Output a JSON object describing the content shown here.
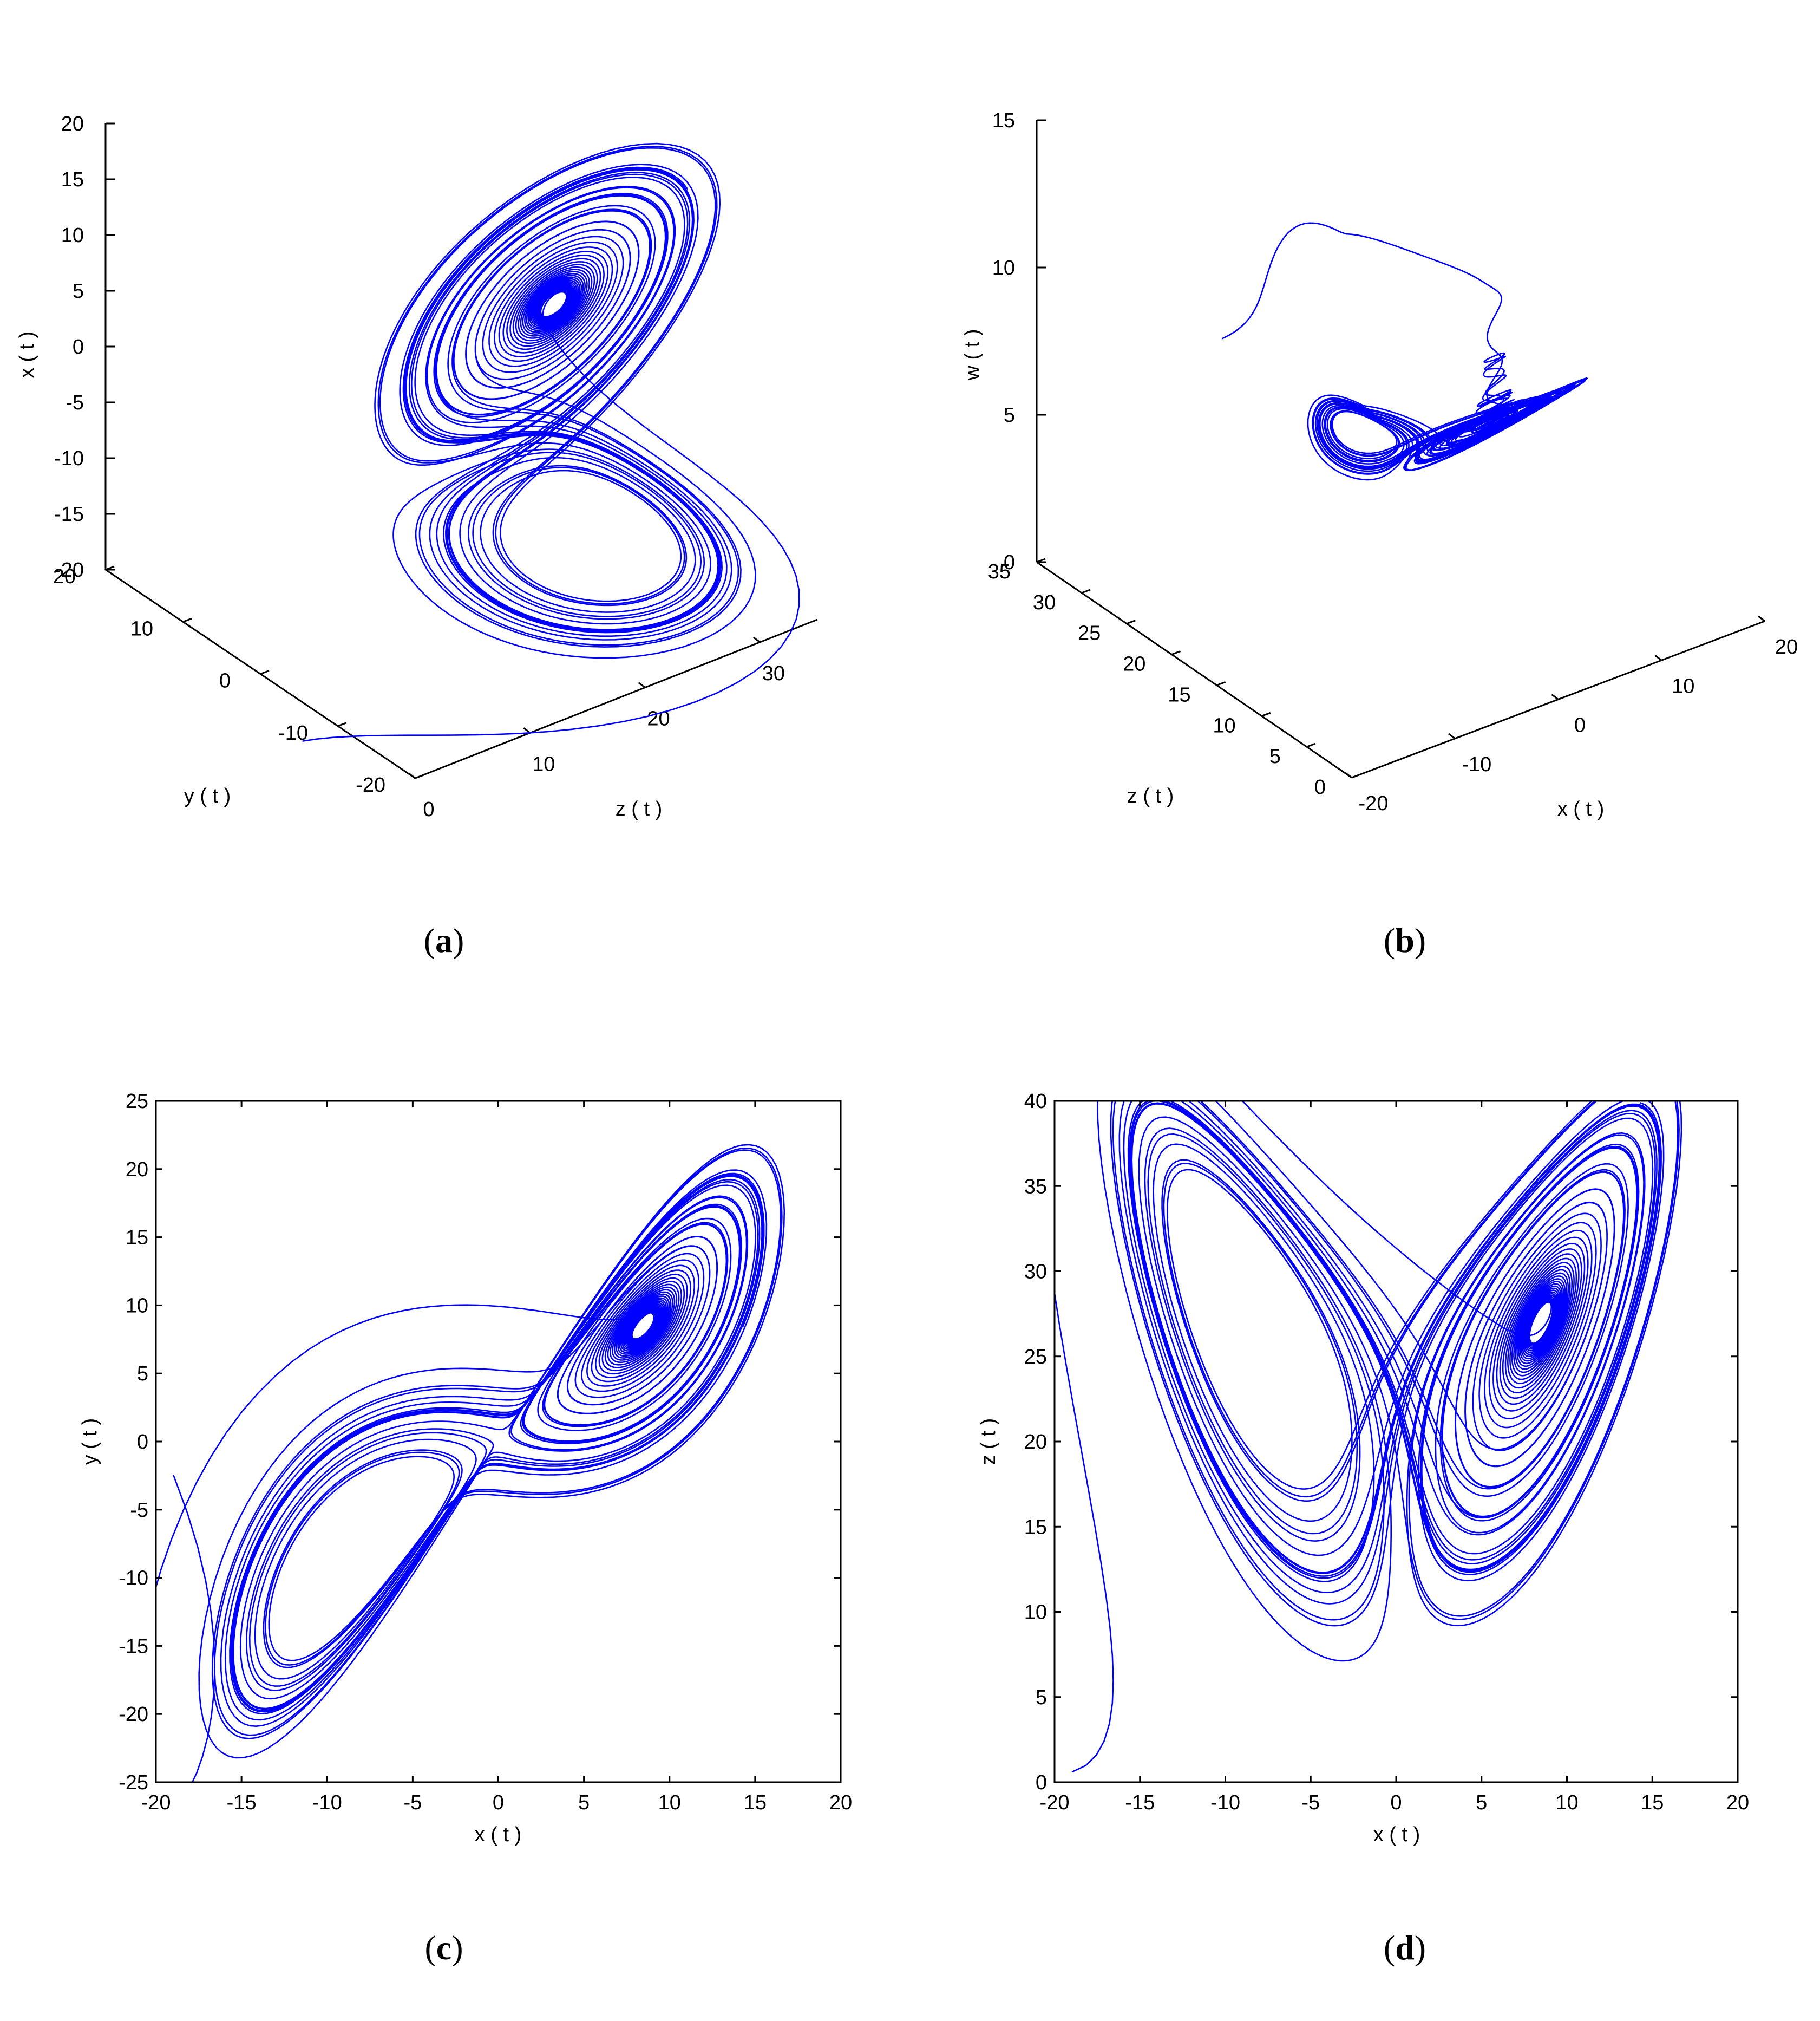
{
  "panels": [
    {
      "id": "a",
      "caption": "a",
      "chart_data": {
        "type": "line",
        "projection": "3d",
        "axes": [
          {
            "label": "x ( t )",
            "ticks": [
              "20",
              "15",
              "10",
              "5",
              "0",
              "-5",
              "-10",
              "-15",
              "-20"
            ],
            "range": [
              -20,
              20
            ]
          },
          {
            "label": "y ( t )",
            "ticks": [
              "20",
              "10",
              "0",
              "-10",
              "-20"
            ],
            "range": [
              -20,
              20
            ]
          },
          {
            "label": "z ( t )",
            "ticks": [
              "0",
              "10",
              "20",
              "30"
            ],
            "range": [
              0,
              35
            ]
          }
        ],
        "series_color": "#0000ff"
      }
    },
    {
      "id": "b",
      "caption": "b",
      "chart_data": {
        "type": "line",
        "projection": "3d",
        "axes": [
          {
            "label": "w ( t )",
            "ticks": [
              "15",
              "10",
              "5",
              "0"
            ],
            "range": [
              0,
              15
            ]
          },
          {
            "label": "z ( t )",
            "ticks": [
              "35",
              "30",
              "25",
              "20",
              "15",
              "10",
              "5",
              "0"
            ],
            "range": [
              0,
              35
            ]
          },
          {
            "label": "x ( t )",
            "ticks": [
              "-20",
              "-10",
              "0",
              "10",
              "20"
            ],
            "range": [
              -20,
              20
            ]
          }
        ],
        "series_color": "#0000ff"
      }
    },
    {
      "id": "c",
      "caption": "c",
      "chart_data": {
        "type": "line",
        "xlabel": "x ( t )",
        "ylabel": "y ( t )",
        "xlim": [
          -20,
          20
        ],
        "ylim": [
          -25,
          25
        ],
        "xticks": [
          "-20",
          "-15",
          "-10",
          "-5",
          "0",
          "5",
          "10",
          "15",
          "20"
        ],
        "yticks": [
          "25",
          "20",
          "15",
          "10",
          "5",
          "0",
          "-5",
          "-10",
          "-15",
          "-20",
          "-25"
        ],
        "series_color": "#0000ff"
      }
    },
    {
      "id": "d",
      "caption": "d",
      "chart_data": {
        "type": "line",
        "xlabel": "x ( t )",
        "ylabel": "z ( t )",
        "xlim": [
          -20,
          20
        ],
        "ylim": [
          0,
          40
        ],
        "xticks": [
          "-20",
          "-15",
          "-10",
          "-5",
          "0",
          "5",
          "10",
          "15",
          "20"
        ],
        "yticks": [
          "40",
          "35",
          "30",
          "25",
          "20",
          "15",
          "10",
          "5",
          "0"
        ],
        "series_color": "#0000ff"
      }
    }
  ]
}
